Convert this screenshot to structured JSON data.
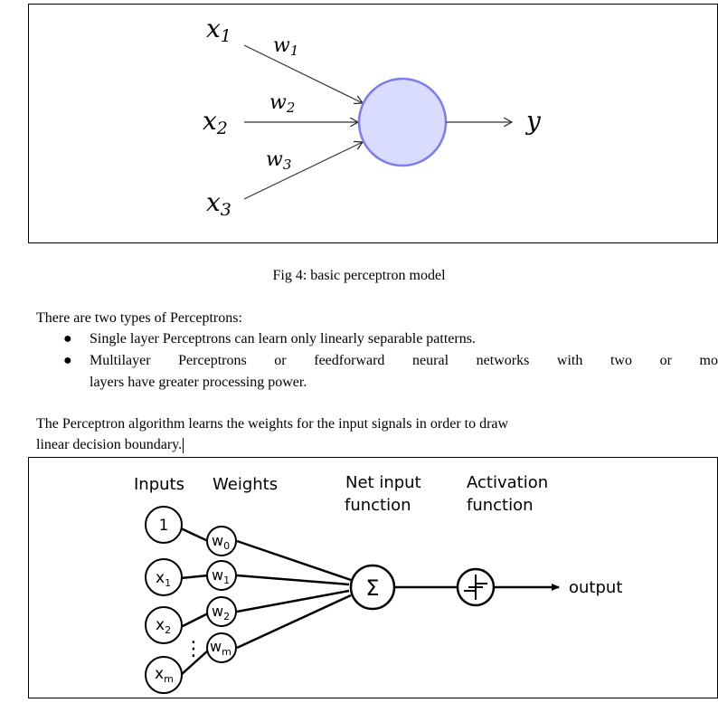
{
  "figure1": {
    "inputs": [
      "x",
      "x",
      "x"
    ],
    "input_subscripts": [
      "1",
      "2",
      "3"
    ],
    "weights": [
      "w",
      "w",
      "w"
    ],
    "weight_subscripts": [
      "1",
      "2",
      "3"
    ],
    "output": "y",
    "node_fill": "#d9dcff",
    "node_stroke": "#7b7cf0"
  },
  "caption": "Fig 4: basic perceptron model",
  "intro": "There are two types of Perceptrons:",
  "types": [
    "Single layer Perceptrons can learn only linearly separable patterns.",
    "Multilayer Perceptrons or feedforward neural networks with two or mo",
    "layers have greater processing power."
  ],
  "bullet": "●",
  "algorithm": {
    "line1": "The Perceptron algorithm learns the weights for the input signals in order to draw",
    "line2": "linear decision boundary."
  },
  "figure2": {
    "header_inputs": "Inputs",
    "header_weights": "Weights",
    "header_net_line1": "Net input",
    "header_net_line2": "function",
    "header_act_line1": "Activation",
    "header_act_line2": "function",
    "input_one": "1",
    "inputs": [
      "x",
      "x",
      "x"
    ],
    "input_subscripts": [
      "1",
      "2",
      "m"
    ],
    "weights": [
      "w",
      "w",
      "w",
      "w"
    ],
    "weight_subscripts": [
      "0",
      "1",
      "2",
      "m"
    ],
    "sum_symbol": "Σ",
    "output_label": "output",
    "dots": "⋮"
  }
}
